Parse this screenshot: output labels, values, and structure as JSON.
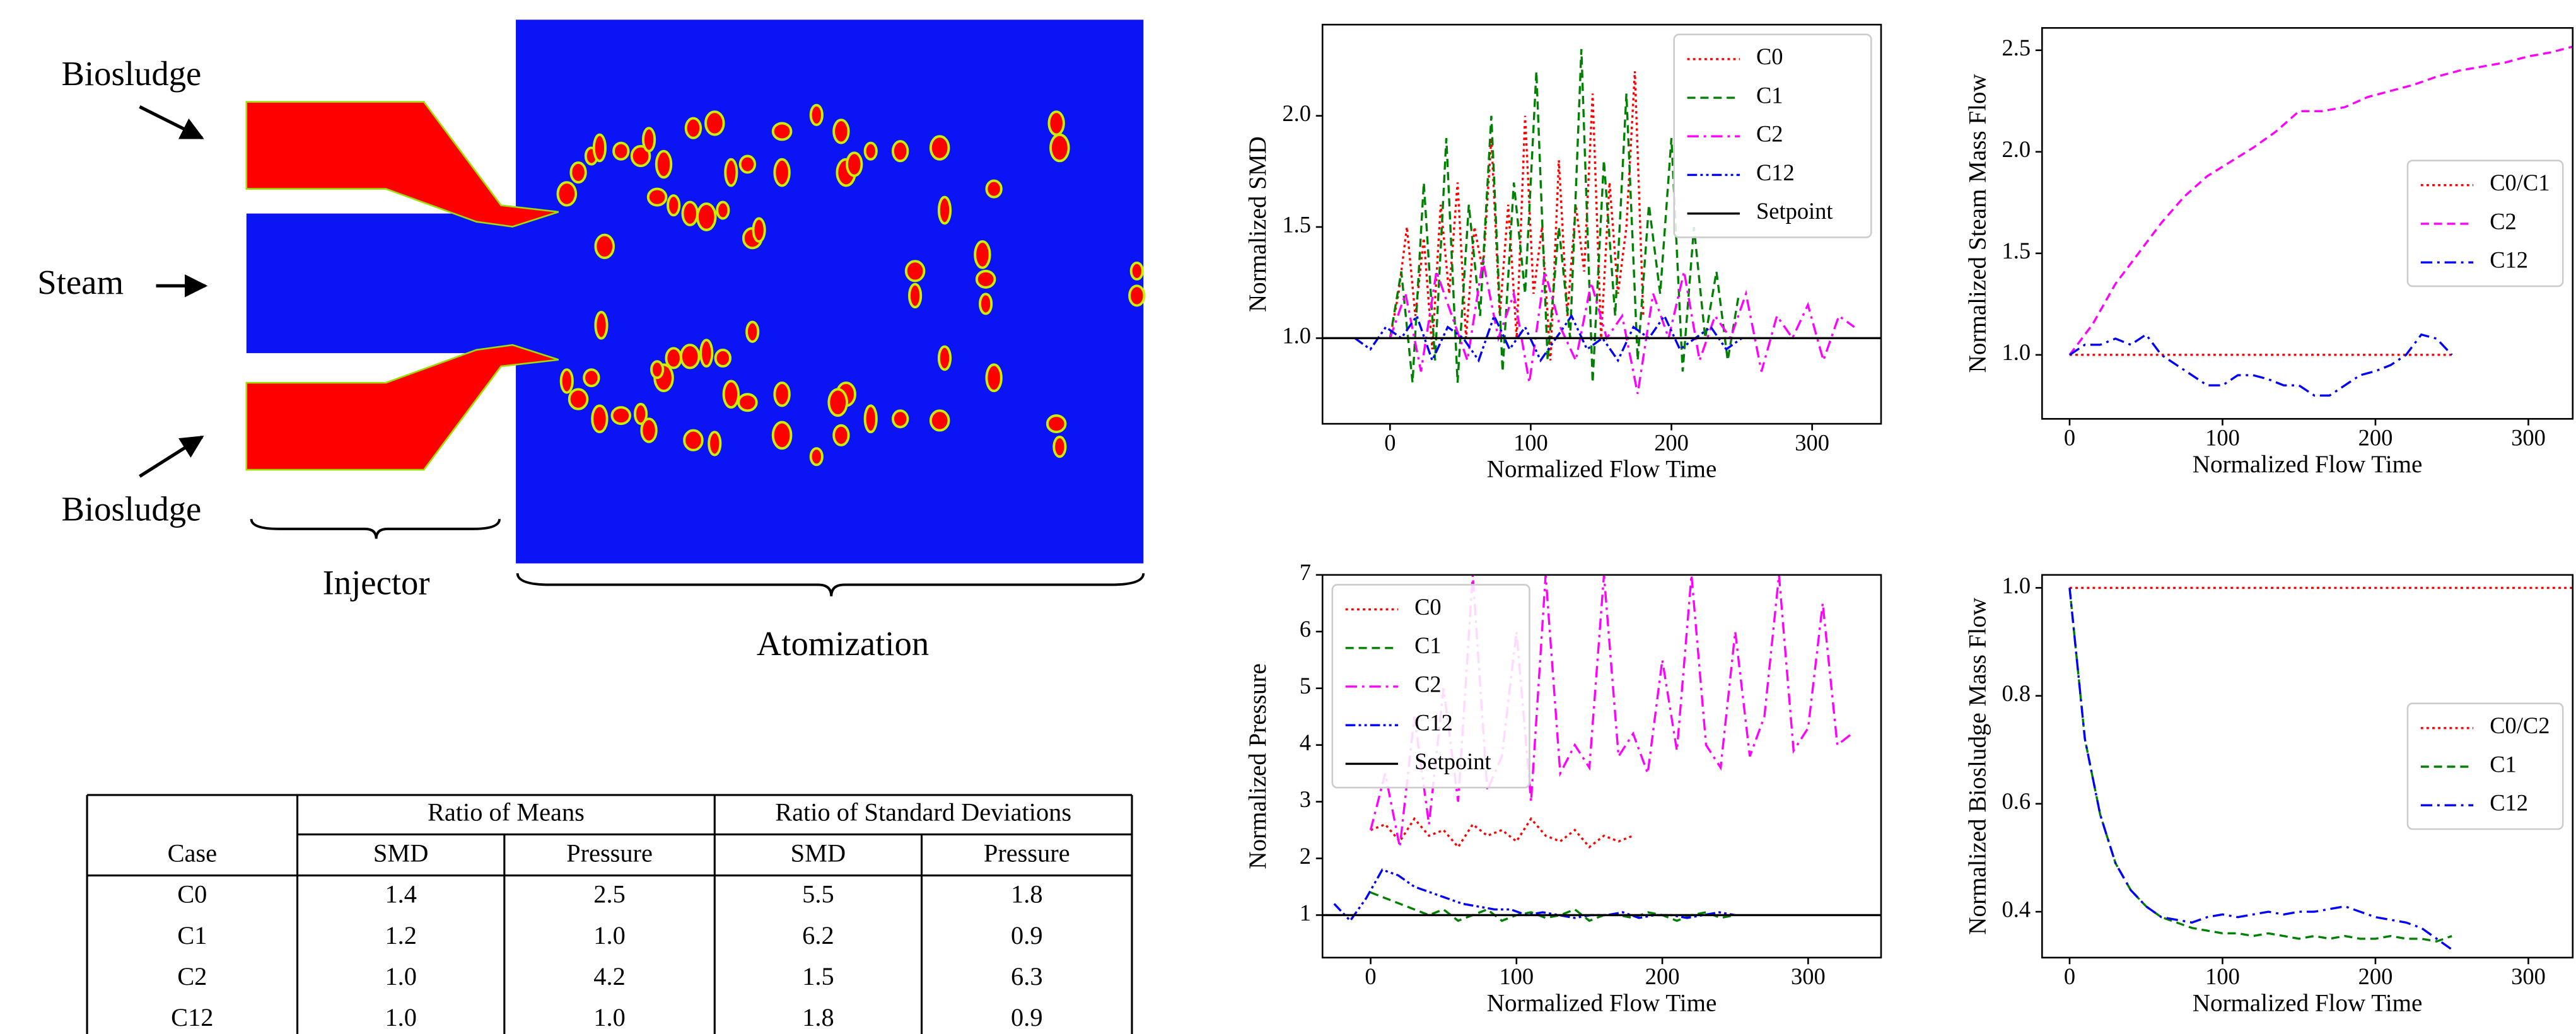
{
  "diagram": {
    "labels": [
      "Biosludge",
      "Steam",
      "Biosludge",
      "Injector",
      "Atomization"
    ]
  },
  "table": {
    "groups": [
      "Ratio of Means",
      "Ratio of Standard Deviations"
    ],
    "header": [
      "Case",
      "SMD",
      "Pressure",
      "SMD",
      "Pressure"
    ],
    "rows": [
      [
        "C0",
        "1.4",
        "2.5",
        "5.5",
        "1.8"
      ],
      [
        "C1",
        "1.2",
        "1.0",
        "6.2",
        "0.9"
      ],
      [
        "C2",
        "1.0",
        "4.2",
        "1.5",
        "6.3"
      ],
      [
        "C12",
        "1.0",
        "1.0",
        "1.8",
        "0.9"
      ]
    ]
  },
  "chart_data": [
    {
      "type": "line",
      "xlabel": "Normalized Flow Time",
      "ylabel": "Normalized SMD",
      "xlim": [
        -48,
        349
      ],
      "ylim": [
        0.615,
        2.41
      ],
      "xticks": [
        0,
        100,
        200,
        300
      ],
      "yticks": [
        {
          "value": 1,
          "label": "1.0"
        },
        1.5,
        {
          "value": 2,
          "label": "2.0"
        }
      ],
      "legend": "upper right",
      "series": [
        {
          "name": "C0",
          "color": "#ff0000",
          "style": "dotted",
          "x": [
            0,
            6,
            12,
            18,
            24,
            30,
            36,
            42,
            48,
            54,
            60,
            66,
            72,
            78,
            84,
            90,
            96,
            102,
            108,
            114,
            120,
            126,
            132,
            138,
            144,
            150,
            156,
            162,
            168,
            174,
            180
          ],
          "values": [
            1.0,
            1.2,
            1.5,
            1.1,
            1.45,
            0.95,
            1.6,
            1.2,
            1.7,
            1.0,
            1.5,
            1.3,
            1.9,
            1.1,
            1.6,
            1.0,
            2.0,
            1.2,
            1.5,
            0.9,
            1.8,
            1.1,
            1.6,
            1.3,
            2.1,
            1.0,
            1.7,
            1.2,
            1.5,
            2.2,
            1.1
          ]
        },
        {
          "name": "C1",
          "color": "#008000",
          "style": "dashed",
          "x": [
            0,
            8,
            16,
            24,
            32,
            40,
            48,
            56,
            64,
            72,
            80,
            88,
            96,
            104,
            112,
            120,
            128,
            136,
            144,
            152,
            160,
            168,
            176,
            184,
            192,
            200,
            208,
            216,
            224,
            232,
            240,
            248
          ],
          "values": [
            1.0,
            1.3,
            0.8,
            1.7,
            0.9,
            1.9,
            0.8,
            1.6,
            1.1,
            2.0,
            0.85,
            1.7,
            1.2,
            2.2,
            0.9,
            1.5,
            1.0,
            2.3,
            0.8,
            1.8,
            1.1,
            2.1,
            0.9,
            1.6,
            1.2,
            1.9,
            0.85,
            1.5,
            1.0,
            1.3,
            0.9,
            1.2
          ]
        },
        {
          "name": "C2",
          "color": "#ff00ff",
          "style": "dashdot",
          "x": [
            0,
            11,
            22,
            33,
            44,
            55,
            66,
            77,
            88,
            99,
            110,
            121,
            132,
            143,
            154,
            165,
            176,
            187,
            198,
            209,
            220,
            231,
            242,
            253,
            264,
            275,
            286,
            297,
            308,
            319,
            330
          ],
          "values": [
            1.0,
            1.2,
            0.85,
            1.3,
            1.1,
            0.9,
            1.35,
            1.0,
            1.2,
            0.8,
            1.3,
            1.05,
            0.9,
            1.25,
            1.0,
            1.1,
            0.75,
            1.2,
            1.0,
            1.3,
            0.9,
            1.1,
            1.0,
            1.2,
            0.85,
            1.1,
            1.0,
            1.15,
            0.9,
            1.1,
            1.05
          ]
        },
        {
          "name": "C12",
          "color": "#0000ff",
          "style": "dashdotdot",
          "x": [
            -25,
            -14,
            -3,
            8,
            19,
            30,
            41,
            52,
            63,
            74,
            85,
            96,
            107,
            118,
            129,
            140,
            151,
            162,
            173,
            184,
            195,
            206,
            217,
            228,
            239,
            250
          ],
          "values": [
            1.0,
            0.95,
            1.05,
            1.0,
            1.1,
            0.9,
            1.05,
            1.0,
            0.9,
            1.1,
            0.95,
            1.05,
            0.9,
            1.0,
            1.1,
            0.95,
            1.0,
            0.9,
            1.05,
            1.0,
            1.1,
            0.95,
            1.0,
            1.05,
            0.95,
            1.0
          ]
        },
        {
          "name": "Setpoint",
          "color": "#000000",
          "style": "solid",
          "x": [
            -48,
            349
          ],
          "values": [
            1,
            1
          ]
        }
      ]
    },
    {
      "type": "line",
      "xlabel": "Normalized Flow Time",
      "ylabel": "Normalized Steam Mass Flow",
      "xlim": [
        -18,
        329
      ],
      "ylim": [
        0.685,
        2.61
      ],
      "xticks": [
        0,
        100,
        200,
        300
      ],
      "yticks": [
        {
          "value": 1,
          "label": "1.0"
        },
        1.5,
        {
          "value": 2,
          "label": "2.0"
        },
        2.5
      ],
      "legend": "center right",
      "series": [
        {
          "name": "C0/C1",
          "color": "#ff0000",
          "style": "dotted",
          "x": [
            0,
            250
          ],
          "values": [
            1,
            1
          ]
        },
        {
          "name": "C2",
          "color": "#ff00ff",
          "style": "dashed",
          "x": [
            0,
            15,
            30,
            45,
            60,
            75,
            90,
            105,
            120,
            135,
            150,
            165,
            180,
            195,
            210,
            225,
            240,
            255,
            270,
            285,
            300,
            315,
            330
          ],
          "values": [
            1.0,
            1.15,
            1.35,
            1.5,
            1.65,
            1.78,
            1.88,
            1.95,
            2.02,
            2.1,
            2.2,
            2.2,
            2.22,
            2.27,
            2.3,
            2.33,
            2.37,
            2.4,
            2.42,
            2.44,
            2.47,
            2.49,
            2.52
          ]
        },
        {
          "name": "C12",
          "color": "#0000ff",
          "style": "dashdot",
          "x": [
            0,
            10,
            20,
            30,
            40,
            50,
            60,
            70,
            80,
            90,
            100,
            110,
            120,
            130,
            140,
            150,
            160,
            170,
            180,
            190,
            200,
            210,
            220,
            230,
            240,
            250
          ],
          "values": [
            1.0,
            1.05,
            1.05,
            1.08,
            1.05,
            1.1,
            1.0,
            0.95,
            0.9,
            0.85,
            0.85,
            0.9,
            0.9,
            0.88,
            0.85,
            0.85,
            0.8,
            0.8,
            0.85,
            0.9,
            0.92,
            0.95,
            1.0,
            1.1,
            1.08,
            1.0
          ]
        }
      ]
    },
    {
      "type": "line",
      "xlabel": "Normalized Flow Time",
      "ylabel": "Normalized Pressure",
      "xlim": [
        -33,
        350
      ],
      "ylim": [
        0.25,
        7
      ],
      "xticks": [
        0,
        100,
        200,
        300
      ],
      "yticks": [
        1,
        2,
        3,
        4,
        5,
        6,
        7
      ],
      "legend": "upper left",
      "series": [
        {
          "name": "C0",
          "color": "#ff0000",
          "style": "dotted",
          "x": [
            0,
            10,
            20,
            30,
            40,
            50,
            60,
            70,
            80,
            90,
            100,
            110,
            120,
            130,
            140,
            150,
            160,
            170,
            180
          ],
          "values": [
            2.5,
            2.6,
            2.3,
            2.7,
            2.4,
            2.5,
            2.2,
            2.6,
            2.4,
            2.5,
            2.3,
            2.7,
            2.4,
            2.3,
            2.5,
            2.2,
            2.4,
            2.3,
            2.4
          ]
        },
        {
          "name": "C1",
          "color": "#008000",
          "style": "dashed",
          "x": [
            0,
            10,
            20,
            30,
            40,
            50,
            60,
            70,
            80,
            90,
            100,
            110,
            120,
            130,
            140,
            150,
            160,
            170,
            180,
            190,
            200,
            210,
            220,
            230,
            240,
            250
          ],
          "values": [
            1.4,
            1.3,
            1.2,
            1.1,
            1.0,
            1.1,
            0.9,
            1.0,
            1.1,
            0.9,
            1.0,
            1.05,
            0.95,
            1.0,
            1.1,
            0.9,
            1.0,
            1.0,
            0.95,
            1.05,
            1.0,
            0.9,
            1.0,
            1.05,
            0.95,
            1.0
          ]
        },
        {
          "name": "C2",
          "color": "#ff00ff",
          "style": "dashdot",
          "x": [
            0,
            10,
            20,
            30,
            40,
            50,
            60,
            70,
            80,
            90,
            100,
            110,
            120,
            130,
            140,
            150,
            160,
            170,
            180,
            190,
            200,
            210,
            220,
            230,
            240,
            250,
            260,
            270,
            280,
            290,
            300,
            310,
            320,
            330
          ],
          "values": [
            2.5,
            3.5,
            2.2,
            4.5,
            2.6,
            5.0,
            3.0,
            7.0,
            3.2,
            3.8,
            6.0,
            3.0,
            7.0,
            3.5,
            4.0,
            3.6,
            7.0,
            3.8,
            4.2,
            3.5,
            5.5,
            3.9,
            7.0,
            4.0,
            3.6,
            6.0,
            3.8,
            4.5,
            7.0,
            3.9,
            4.3,
            6.5,
            4.0,
            4.2
          ]
        },
        {
          "name": "C12",
          "color": "#0000ff",
          "style": "dashdotdot",
          "x": [
            -25,
            -14,
            -3,
            8,
            19,
            30,
            41,
            52,
            63,
            74,
            85,
            96,
            107,
            118,
            129,
            140,
            151,
            162,
            173,
            184,
            195,
            206,
            217,
            228,
            239,
            250
          ],
          "values": [
            1.2,
            0.9,
            1.3,
            1.8,
            1.7,
            1.5,
            1.4,
            1.3,
            1.2,
            1.15,
            1.1,
            1.1,
            1.0,
            1.05,
            1.0,
            0.95,
            1.0,
            1.0,
            1.05,
            0.95,
            1.0,
            1.0,
            0.95,
            1.0,
            1.05,
            1.0
          ]
        },
        {
          "name": "Setpoint",
          "color": "#000000",
          "style": "solid",
          "x": [
            -33,
            350
          ],
          "values": [
            1,
            1
          ]
        }
      ]
    },
    {
      "type": "line",
      "xlabel": "Normalized Flow Time",
      "ylabel": "Normalized Biosludge Mass Flow",
      "xlim": [
        -18,
        329
      ],
      "ylim": [
        0.315,
        1.024
      ],
      "xticks": [
        0,
        100,
        200,
        300
      ],
      "yticks": [
        0.4,
        0.6,
        0.8,
        {
          "value": 1,
          "label": "1.0"
        }
      ],
      "legend": "center right",
      "series": [
        {
          "name": "C0/C2",
          "color": "#ff0000",
          "style": "dotted",
          "x": [
            0,
            329
          ],
          "values": [
            1,
            1
          ]
        },
        {
          "name": "C1",
          "color": "#008000",
          "style": "dashed",
          "x": [
            0,
            10,
            20,
            30,
            40,
            50,
            60,
            70,
            80,
            90,
            100,
            110,
            120,
            130,
            140,
            150,
            160,
            170,
            180,
            190,
            200,
            210,
            220,
            230,
            240,
            250
          ],
          "values": [
            1.0,
            0.72,
            0.58,
            0.49,
            0.44,
            0.41,
            0.39,
            0.38,
            0.37,
            0.365,
            0.36,
            0.36,
            0.355,
            0.36,
            0.355,
            0.35,
            0.355,
            0.35,
            0.355,
            0.35,
            0.35,
            0.355,
            0.35,
            0.35,
            0.345,
            0.355
          ]
        },
        {
          "name": "C12",
          "color": "#0000ff",
          "style": "dashdot",
          "x": [
            0,
            10,
            20,
            30,
            40,
            50,
            60,
            70,
            80,
            90,
            100,
            110,
            120,
            130,
            140,
            150,
            160,
            170,
            180,
            190,
            200,
            210,
            220,
            230,
            240,
            250
          ],
          "values": [
            1.0,
            0.72,
            0.58,
            0.49,
            0.44,
            0.41,
            0.39,
            0.385,
            0.38,
            0.39,
            0.395,
            0.39,
            0.395,
            0.4,
            0.395,
            0.4,
            0.4,
            0.405,
            0.41,
            0.4,
            0.39,
            0.385,
            0.38,
            0.37,
            0.35,
            0.33
          ]
        }
      ]
    }
  ]
}
